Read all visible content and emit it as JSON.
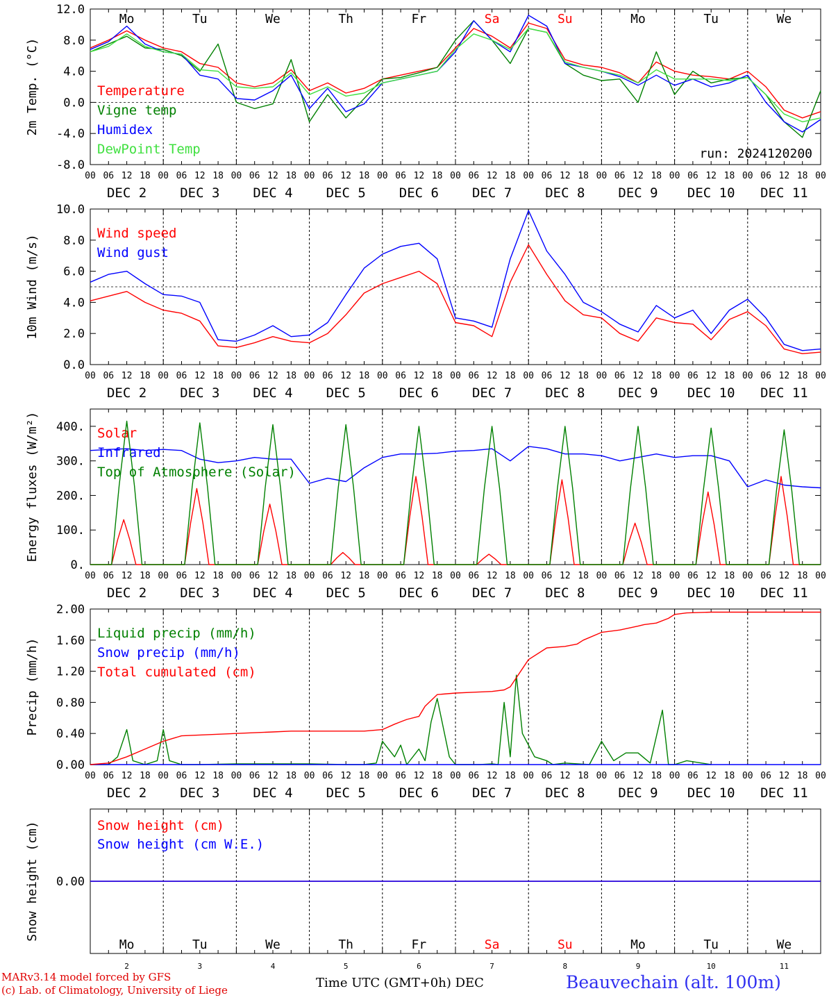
{
  "run_label": "run: 2024120200",
  "footer": {
    "model": "MARv3.14 model forced by GFS",
    "credit": "(c) Lab. of Climatology, University of Liege",
    "time_axis": "Time UTC (GMT+0h) DEC",
    "station": "Beauvechain (alt. 100m)"
  },
  "time_axis": {
    "start_day": 2,
    "days": 10,
    "hour_ticks": [
      "00",
      "06",
      "12",
      "18"
    ],
    "day_labels": [
      "DEC 2",
      "DEC 3",
      "DEC 4",
      "DEC 5",
      "DEC 6",
      "DEC 7",
      "DEC 8",
      "DEC 9",
      "DEC 10",
      "DEC 11"
    ],
    "weekdays": [
      "Mo",
      "Tu",
      "We",
      "Th",
      "Fr",
      "Sa",
      "Su",
      "Mo",
      "Tu",
      "We"
    ],
    "weekend_color": "#ff0000",
    "weekday_color": "#000000",
    "day_numbers": [
      "2",
      "3",
      "4",
      "5",
      "6",
      "7",
      "8",
      "9",
      "10",
      "11"
    ]
  },
  "chart_data": [
    {
      "type": "line",
      "ylabel": "2m Temp. (°C)",
      "ylim": [
        -8,
        12
      ],
      "yticks": [
        "-8.0",
        "-4.0",
        "0.0",
        "4.0",
        "8.0",
        "12.0"
      ],
      "ref_line": 0,
      "x_unit": "hours since 2 DEC 00 UTC",
      "series": [
        {
          "name": "Temperature",
          "color": "#ff0000",
          "x": [
            0,
            6,
            12,
            18,
            24,
            30,
            36,
            42,
            48,
            54,
            60,
            66,
            72,
            78,
            84,
            90,
            96,
            102,
            108,
            114,
            120,
            126,
            132,
            138,
            144,
            150,
            156,
            162,
            168,
            174,
            180,
            186,
            192,
            198,
            204,
            210,
            216,
            222,
            228,
            234,
            240
          ],
          "y": [
            7.0,
            8.0,
            9.2,
            8.0,
            7.0,
            6.5,
            5.0,
            4.5,
            2.5,
            2.0,
            2.5,
            4.2,
            1.5,
            2.5,
            1.2,
            1.8,
            3.0,
            3.5,
            4.0,
            4.5,
            7.0,
            9.5,
            8.5,
            7.0,
            10.2,
            9.5,
            5.5,
            4.8,
            4.5,
            3.8,
            2.5,
            5.2,
            4.0,
            3.5,
            3.3,
            3.0,
            4.0,
            2.0,
            -1.0,
            -2.0,
            -1.2
          ]
        },
        {
          "name": "Vigne temp",
          "color": "#008000",
          "x": [
            0,
            6,
            12,
            18,
            24,
            30,
            36,
            42,
            48,
            54,
            60,
            66,
            72,
            78,
            84,
            90,
            96,
            102,
            108,
            114,
            120,
            126,
            132,
            138,
            144,
            150,
            156,
            162,
            168,
            174,
            180,
            186,
            192,
            198,
            204,
            210,
            216,
            222,
            228,
            234,
            240
          ],
          "y": [
            6.5,
            7.5,
            8.5,
            7.0,
            6.8,
            6.0,
            4.0,
            7.5,
            0.0,
            -0.8,
            -0.2,
            5.5,
            -2.5,
            1.0,
            -2.0,
            0.5,
            3.0,
            3.2,
            3.8,
            4.5,
            8.0,
            10.5,
            8.0,
            5.0,
            9.5,
            9.0,
            5.0,
            3.5,
            2.8,
            3.0,
            0.0,
            6.5,
            1.0,
            4.0,
            2.5,
            3.0,
            3.2,
            1.0,
            -2.5,
            -4.5,
            1.5
          ]
        },
        {
          "name": "Humidex",
          "color": "#0000ff",
          "x": [
            0,
            6,
            12,
            18,
            24,
            30,
            36,
            42,
            48,
            54,
            60,
            66,
            72,
            78,
            84,
            90,
            96,
            102,
            108,
            114,
            120,
            126,
            132,
            138,
            144,
            150,
            156,
            162,
            168,
            174,
            180,
            186,
            192,
            198,
            204,
            210,
            216,
            222,
            228,
            234,
            240
          ],
          "y": [
            6.8,
            7.8,
            9.8,
            7.5,
            6.5,
            6.2,
            3.5,
            3.0,
            0.5,
            0.3,
            1.5,
            3.5,
            -0.8,
            1.8,
            -1.2,
            -0.2,
            2.5,
            3.0,
            3.5,
            4.0,
            6.5,
            10.5,
            8.0,
            6.5,
            11.2,
            9.8,
            5.0,
            4.5,
            4.0,
            3.3,
            2.2,
            3.5,
            2.2,
            3.0,
            2.0,
            2.5,
            3.5,
            0.0,
            -2.5,
            -3.8,
            -2.2
          ]
        },
        {
          "name": "DewPoint Temp",
          "color": "#40e040",
          "x": [
            0,
            6,
            12,
            18,
            24,
            30,
            36,
            42,
            48,
            54,
            60,
            66,
            72,
            78,
            84,
            90,
            96,
            102,
            108,
            114,
            120,
            126,
            132,
            138,
            144,
            150,
            156,
            162,
            168,
            174,
            180,
            186,
            192,
            198,
            204,
            210,
            216,
            222,
            228,
            234,
            240
          ],
          "y": [
            6.5,
            7.2,
            8.8,
            7.2,
            6.5,
            6.2,
            4.2,
            4.0,
            2.0,
            1.8,
            2.0,
            3.8,
            1.0,
            2.0,
            0.8,
            1.2,
            2.5,
            3.0,
            3.5,
            4.0,
            6.8,
            8.8,
            8.0,
            6.8,
            9.5,
            9.0,
            5.2,
            4.5,
            4.0,
            3.5,
            2.5,
            4.2,
            3.0,
            3.0,
            3.0,
            2.8,
            3.2,
            1.0,
            -1.5,
            -2.5,
            -2.0
          ]
        }
      ]
    },
    {
      "type": "line",
      "ylabel": "10m Wind (m/s)",
      "ylim": [
        0,
        10
      ],
      "yticks": [
        "0.0",
        "2.0",
        "4.0",
        "6.0",
        "8.0",
        "10.0"
      ],
      "ref_line": 5,
      "series": [
        {
          "name": "Wind speed",
          "color": "#ff0000",
          "x": [
            0,
            6,
            12,
            18,
            24,
            30,
            36,
            42,
            48,
            54,
            60,
            66,
            72,
            78,
            84,
            90,
            96,
            102,
            108,
            114,
            120,
            126,
            132,
            138,
            144,
            150,
            156,
            162,
            168,
            174,
            180,
            186,
            192,
            198,
            204,
            210,
            216,
            222,
            228,
            234,
            240
          ],
          "y": [
            4.1,
            4.4,
            4.7,
            4.0,
            3.5,
            3.3,
            2.8,
            1.2,
            1.1,
            1.4,
            1.8,
            1.5,
            1.4,
            2.0,
            3.2,
            4.6,
            5.2,
            5.6,
            6.0,
            5.2,
            2.7,
            2.5,
            1.8,
            5.3,
            7.7,
            5.8,
            4.1,
            3.2,
            3.0,
            2.0,
            1.5,
            3.0,
            2.7,
            2.6,
            1.6,
            2.9,
            3.4,
            2.5,
            1.0,
            0.7,
            0.8
          ]
        },
        {
          "name": "Wind gust",
          "color": "#0000ff",
          "x": [
            0,
            6,
            12,
            18,
            24,
            30,
            36,
            42,
            48,
            54,
            60,
            66,
            72,
            78,
            84,
            90,
            96,
            102,
            108,
            114,
            120,
            126,
            132,
            138,
            144,
            150,
            156,
            162,
            168,
            174,
            180,
            186,
            192,
            198,
            204,
            210,
            216,
            222,
            228,
            234,
            240
          ],
          "y": [
            5.3,
            5.8,
            6.0,
            5.2,
            4.5,
            4.4,
            4.0,
            1.6,
            1.5,
            1.9,
            2.5,
            1.8,
            1.9,
            2.7,
            4.5,
            6.2,
            7.1,
            7.6,
            7.8,
            6.8,
            3.0,
            2.8,
            2.4,
            6.8,
            9.9,
            7.3,
            5.8,
            4.0,
            3.4,
            2.6,
            2.1,
            3.8,
            3.0,
            3.5,
            2.0,
            3.5,
            4.2,
            3.0,
            1.3,
            0.9,
            1.0
          ]
        }
      ]
    },
    {
      "type": "line",
      "ylabel": "Energy fluxes (W/m²)",
      "ylim": [
        0,
        450
      ],
      "yticks": [
        "0.",
        "100.",
        "200.",
        "300.",
        "400."
      ],
      "series": [
        {
          "name": "Solar",
          "color": "#ff0000",
          "x_peaks": [
            11,
            35,
            59,
            83,
            107,
            131,
            155,
            179,
            203,
            227
          ],
          "peak_values": [
            130,
            220,
            175,
            35,
            255,
            30,
            245,
            120,
            210,
            255
          ]
        },
        {
          "name": "Infrared",
          "color": "#0000ff",
          "x": [
            0,
            6,
            12,
            18,
            24,
            30,
            36,
            42,
            48,
            54,
            60,
            66,
            72,
            78,
            84,
            90,
            96,
            102,
            108,
            114,
            120,
            126,
            132,
            138,
            144,
            150,
            156,
            162,
            168,
            174,
            180,
            186,
            192,
            198,
            204,
            210,
            216,
            222,
            228,
            234,
            240
          ],
          "y": [
            330,
            333,
            335,
            330,
            333,
            330,
            305,
            295,
            300,
            310,
            305,
            305,
            235,
            250,
            240,
            280,
            310,
            320,
            320,
            322,
            328,
            330,
            335,
            300,
            342,
            335,
            320,
            320,
            315,
            300,
            310,
            320,
            310,
            315,
            315,
            300,
            225,
            245,
            230,
            225,
            222
          ]
        },
        {
          "name": "Top of Atmosphere (Solar)",
          "color": "#008000",
          "x_peaks": [
            12,
            36,
            60,
            84,
            108,
            132,
            156,
            180,
            204,
            228
          ],
          "peak_values": [
            415,
            410,
            405,
            405,
            400,
            400,
            400,
            400,
            395,
            390
          ]
        }
      ]
    },
    {
      "type": "line",
      "ylabel": "Precip (mm/h)",
      "ylim": [
        0,
        2.0
      ],
      "yticks": [
        "0.00",
        "0.40",
        "0.80",
        "1.20",
        "1.60",
        "2.00"
      ],
      "series": [
        {
          "name": "Liquid precip (mm/h)",
          "color": "#008000",
          "x": [
            0,
            6,
            9,
            12,
            14,
            18,
            22,
            24,
            26,
            30,
            36,
            48,
            72,
            84,
            90,
            94,
            96,
            100,
            102,
            104,
            108,
            110,
            112,
            114,
            118,
            120,
            122,
            124,
            126,
            128,
            132,
            134,
            136,
            138,
            140,
            142,
            146,
            150,
            152,
            156,
            164,
            168,
            172,
            174,
            176,
            180,
            184,
            188,
            190,
            192,
            196,
            204
          ],
          "y": [
            0,
            0,
            0.1,
            0.45,
            0.05,
            0,
            0.05,
            0.45,
            0.05,
            0,
            0,
            0.01,
            0.01,
            0,
            0,
            0.02,
            0.3,
            0.1,
            0.25,
            0,
            0.2,
            0.05,
            0.55,
            0.85,
            0.1,
            0,
            0,
            0,
            0,
            0,
            0.01,
            0,
            0.8,
            0.1,
            1.15,
            0.4,
            0.1,
            0.05,
            0,
            0.02,
            0,
            0.3,
            0.05,
            0.1,
            0.15,
            0.15,
            0.02,
            0.7,
            0,
            0,
            0.05,
            0
          ]
        },
        {
          "name": "Snow precip (mm/h)",
          "color": "#0000ff",
          "x": [
            0,
            240
          ],
          "y": [
            0,
            0
          ]
        },
        {
          "name": "Total cumulated (cm)",
          "color": "#ff0000",
          "x": [
            0,
            6,
            12,
            18,
            24,
            30,
            36,
            42,
            48,
            54,
            60,
            66,
            72,
            78,
            84,
            90,
            96,
            100,
            102,
            104,
            108,
            110,
            114,
            120,
            126,
            132,
            136,
            138,
            144,
            150,
            156,
            160,
            162,
            168,
            174,
            180,
            182,
            186,
            190,
            192,
            196,
            204,
            210,
            216,
            240
          ],
          "y": [
            0.0,
            0.02,
            0.1,
            0.2,
            0.3,
            0.37,
            0.38,
            0.39,
            0.4,
            0.41,
            0.42,
            0.43,
            0.43,
            0.43,
            0.43,
            0.43,
            0.45,
            0.52,
            0.55,
            0.58,
            0.62,
            0.75,
            0.9,
            0.92,
            0.93,
            0.94,
            0.96,
            1.0,
            1.35,
            1.5,
            1.52,
            1.55,
            1.6,
            1.7,
            1.73,
            1.78,
            1.8,
            1.82,
            1.88,
            1.93,
            1.95,
            1.96,
            1.96,
            1.96,
            1.96
          ]
        }
      ]
    },
    {
      "type": "line",
      "ylabel": "Snow height (cm)",
      "yticks": [
        "0.00"
      ],
      "series": [
        {
          "name": "Snow height (cm)",
          "color": "#ff0000",
          "x": [
            0,
            240
          ],
          "y": [
            0,
            0
          ]
        },
        {
          "name": "Snow height (cm W.E.)",
          "color": "#0000ff",
          "x": [
            0,
            240
          ],
          "y": [
            0,
            0
          ]
        }
      ]
    }
  ]
}
